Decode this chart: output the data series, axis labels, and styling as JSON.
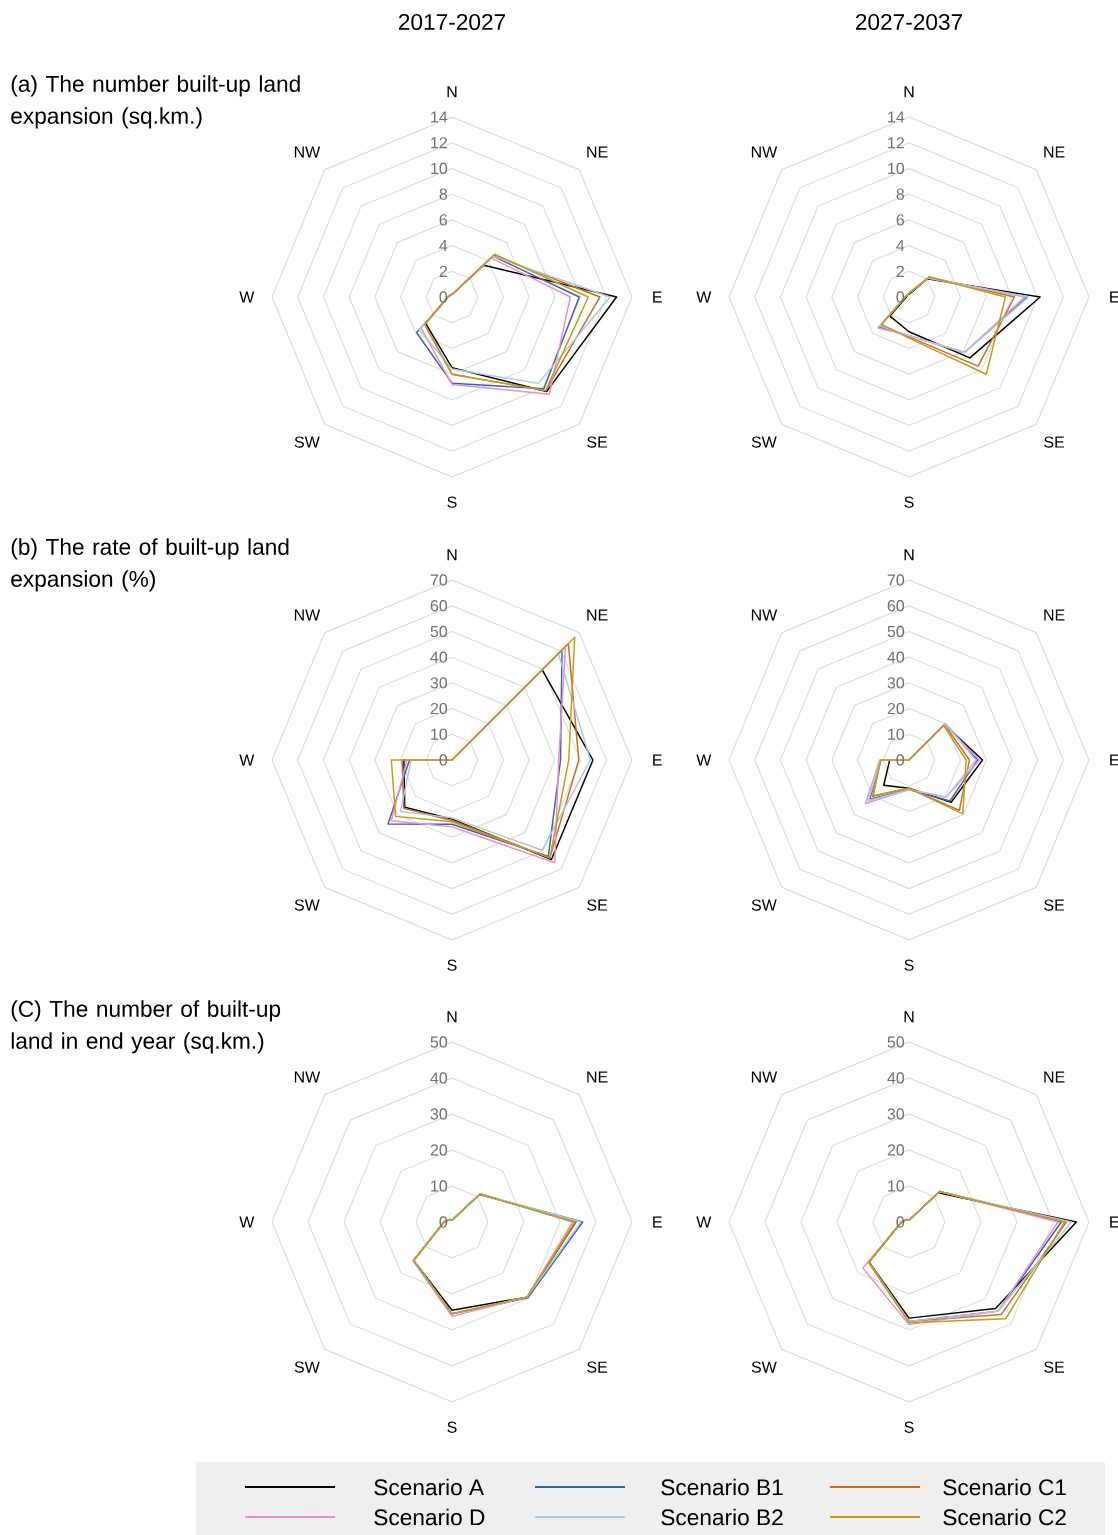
{
  "chart_data": [
    {
      "type": "radar",
      "title": "2017-2027",
      "annotations": [
        "(a) The number built-up land expansion (sq.km.)"
      ],
      "categories": [
        "N",
        "NE",
        "E",
        "SE",
        "S",
        "SW",
        "W",
        "NW"
      ],
      "ylim": [
        0,
        14
      ],
      "yticks": [
        0,
        2,
        4,
        6,
        8,
        10,
        12,
        14
      ],
      "grid": true,
      "series": [
        {
          "color": "#000000",
          "values": [
            0.2,
            3.5,
            12.8,
            10.4,
            5.5,
            2.9,
            0.3,
            0.2
          ]
        },
        {
          "color": "#3b62a6",
          "values": [
            0.2,
            4.5,
            9.9,
            10.1,
            6.7,
            3.9,
            0.3,
            0.2
          ]
        },
        {
          "color": "#cc6a1f",
          "values": [
            0.2,
            4.6,
            11.5,
            10.3,
            6.0,
            3.0,
            0.3,
            0.2
          ]
        },
        {
          "color": "#e98fcb",
          "values": [
            0.2,
            4.3,
            9.2,
            10.7,
            6.8,
            3.4,
            0.3,
            0.2
          ]
        },
        {
          "color": "#a9c9e8",
          "values": [
            0.2,
            4.5,
            12.3,
            9.5,
            5.6,
            3.6,
            0.3,
            0.2
          ]
        },
        {
          "color": "#c49a16",
          "values": [
            0.2,
            4.7,
            10.6,
            10.3,
            6.0,
            3.0,
            0.3,
            0.2
          ]
        }
      ]
    },
    {
      "type": "radar",
      "title": "2027-2037",
      "categories": [
        "N",
        "NE",
        "E",
        "SE",
        "S",
        "SW",
        "W",
        "NW"
      ],
      "ylim": [
        0,
        14
      ],
      "yticks": [
        0,
        2,
        4,
        6,
        8,
        10,
        12,
        14
      ],
      "grid": true,
      "series": [
        {
          "color": "#000000",
          "values": [
            0.2,
            2.0,
            10.2,
            6.7,
            2.7,
            2.1,
            0.2,
            0.2
          ]
        },
        {
          "color": "#3b62a6",
          "values": [
            0.3,
            2.1,
            9.2,
            6.1,
            3.0,
            3.3,
            0.3,
            0.2
          ]
        },
        {
          "color": "#cc6a1f",
          "values": [
            0.3,
            2.2,
            8.2,
            7.6,
            3.1,
            3.1,
            0.3,
            0.2
          ]
        },
        {
          "color": "#e98fcb",
          "values": [
            0.3,
            2.1,
            9.0,
            6.1,
            3.0,
            3.4,
            0.3,
            0.2
          ]
        },
        {
          "color": "#a9c9e8",
          "values": [
            0.3,
            2.1,
            9.3,
            6.1,
            3.0,
            3.2,
            0.3,
            0.2
          ]
        },
        {
          "color": "#c49a16",
          "values": [
            0.3,
            2.2,
            7.5,
            8.5,
            3.2,
            3.0,
            0.3,
            0.2
          ]
        }
      ]
    },
    {
      "type": "radar",
      "annotations": [
        "(b) The rate of built-up land expansion (%)"
      ],
      "categories": [
        "N",
        "NE",
        "E",
        "SE",
        "S",
        "SW",
        "W",
        "NW"
      ],
      "ylim": [
        0,
        70
      ],
      "yticks": [
        0,
        10,
        20,
        30,
        40,
        50,
        60,
        70
      ],
      "grid": true,
      "series": [
        {
          "color": "#000000",
          "values": [
            0,
            49.6,
            54.8,
            54.7,
            23,
            26,
            18.7,
            0
          ]
        },
        {
          "color": "#3b62a6",
          "values": [
            0,
            60.5,
            42.2,
            53,
            25,
            35.2,
            16.5,
            0
          ]
        },
        {
          "color": "#cc6a1f",
          "values": [
            0,
            64,
            49.3,
            53.8,
            23.5,
            26.5,
            19.4,
            0
          ]
        },
        {
          "color": "#e98fcb",
          "values": [
            0,
            62.4,
            41.5,
            56.5,
            26,
            33.4,
            17.5,
            0
          ]
        },
        {
          "color": "#a9c9e8",
          "values": [
            0,
            58.5,
            53.8,
            49.6,
            22.5,
            28.3,
            15.9,
            0
          ]
        },
        {
          "color": "#c49a16",
          "values": [
            0,
            67.5,
            45.4,
            53.8,
            24,
            31,
            23.6,
            0
          ]
        }
      ]
    },
    {
      "type": "radar",
      "categories": [
        "N",
        "NE",
        "E",
        "SE",
        "S",
        "SW",
        "W",
        "NW"
      ],
      "ylim": [
        0,
        70
      ],
      "yticks": [
        0,
        10,
        20,
        30,
        40,
        50,
        60,
        70
      ],
      "grid": true,
      "series": [
        {
          "color": "#000000",
          "values": [
            0,
            19.5,
            28.6,
            23.2,
            11,
            13.9,
            7.5,
            0
          ]
        },
        {
          "color": "#3b62a6",
          "values": [
            0,
            20,
            26.7,
            22.5,
            11.5,
            21.5,
            11,
            0
          ]
        },
        {
          "color": "#cc6a1f",
          "values": [
            0,
            19.5,
            23.5,
            27.7,
            11,
            20,
            11,
            0
          ]
        },
        {
          "color": "#e98fcb",
          "values": [
            0,
            19.5,
            27.4,
            20.4,
            11.5,
            23.9,
            11.4,
            0
          ]
        },
        {
          "color": "#a9c9e8",
          "values": [
            0,
            20,
            26,
            20.4,
            11.5,
            22.4,
            11,
            0
          ]
        },
        {
          "color": "#c49a16",
          "values": [
            0,
            19,
            22.2,
            29.6,
            11,
            19.7,
            11,
            0
          ]
        }
      ]
    },
    {
      "type": "radar",
      "annotations": [
        "(C) The number of built-up land in end year (sq.km.)"
      ],
      "categories": [
        "N",
        "NE",
        "E",
        "SE",
        "S",
        "SW",
        "W",
        "NW"
      ],
      "ylim": [
        0,
        50
      ],
      "yticks": [
        0,
        10,
        20,
        30,
        40,
        50
      ],
      "grid": true,
      "series": [
        {
          "color": "#000000",
          "values": [
            0.5,
            11,
            34.4,
            29.5,
            24.5,
            15.1,
            2.2,
            1.0
          ]
        },
        {
          "color": "#3b62a6",
          "values": [
            0.5,
            10.8,
            36.3,
            29.8,
            25.5,
            15.1,
            2.2,
            1.0
          ]
        },
        {
          "color": "#cc6a1f",
          "values": [
            0.5,
            11,
            34.4,
            29.5,
            25.5,
            15.1,
            2.2,
            1.0
          ]
        },
        {
          "color": "#e98fcb",
          "values": [
            0.5,
            11.1,
            33.5,
            29.5,
            26.2,
            15.3,
            2.2,
            1.0
          ]
        },
        {
          "color": "#a9c9e8",
          "values": [
            0.5,
            11,
            35.8,
            29.5,
            25.5,
            15.1,
            2.2,
            1.0
          ]
        },
        {
          "color": "#c49a16",
          "values": [
            0.5,
            11,
            34,
            29.5,
            25.5,
            15.1,
            2.2,
            1.0
          ]
        }
      ]
    },
    {
      "type": "radar",
      "categories": [
        "N",
        "NE",
        "E",
        "SE",
        "S",
        "SW",
        "W",
        "NW"
      ],
      "ylim": [
        0,
        50
      ],
      "yticks": [
        0,
        10,
        20,
        30,
        40,
        50
      ],
      "grid": true,
      "legend": "bottom",
      "series": [
        {
          "name": "Scenario A",
          "color": "#000000",
          "values": [
            0.5,
            11.5,
            46.5,
            34,
            26.7,
            15.7,
            2.1,
            1.0
          ]
        },
        {
          "name": "Scenario B1",
          "color": "#3b62a6",
          "values": [
            0.5,
            12,
            42.3,
            35,
            27.6,
            15.7,
            2.1,
            1.0
          ]
        },
        {
          "name": "Scenario C1",
          "color": "#cc6a1f",
          "values": [
            0.5,
            12,
            43.7,
            36.3,
            27.6,
            15.7,
            2.1,
            1.0
          ]
        },
        {
          "name": "Scenario D",
          "color": "#e98fcb",
          "values": [
            0.5,
            12,
            41.4,
            35,
            28.5,
            18.1,
            2.1,
            1.0
          ]
        },
        {
          "name": "Scenario B2",
          "color": "#a9c9e8",
          "values": [
            0.5,
            12,
            45.1,
            35,
            27.6,
            15.9,
            2.1,
            1.0
          ]
        },
        {
          "name": "Scenario C2",
          "color": "#c49a16",
          "values": [
            0.5,
            12,
            43.2,
            38,
            28,
            15.9,
            2.1,
            1.0
          ]
        }
      ]
    }
  ]
}
